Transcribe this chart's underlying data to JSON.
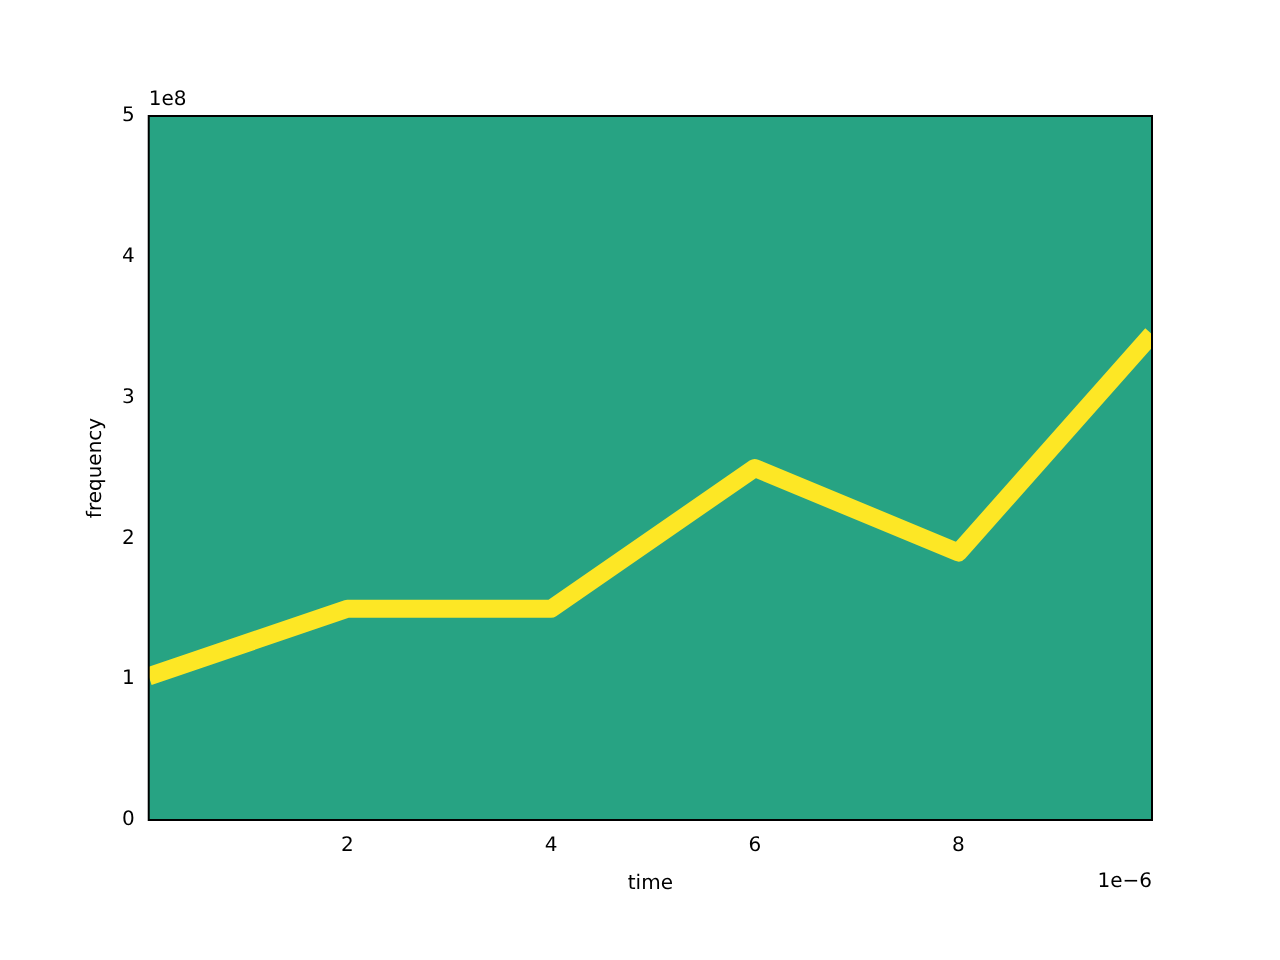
{
  "chart_data": {
    "type": "line",
    "xlabel": "time",
    "ylabel": "frequency",
    "x": [
      0.05,
      2,
      4,
      6,
      8,
      9.9
    ],
    "series": [
      {
        "color": "#fde725",
        "values": [
          1.02,
          1.5,
          1.5,
          2.5,
          1.9,
          3.45
        ]
      }
    ],
    "xlim": [
      0.05,
      9.9
    ],
    "xticks": [
      2,
      4,
      6,
      8
    ],
    "ylim": [
      0,
      5
    ],
    "yticks": [
      0,
      1,
      2,
      3,
      4,
      5
    ],
    "grid": false,
    "legend": false,
    "marker": "none",
    "line_style": "solid",
    "annotations": [
      "1e8",
      "1e−6"
    ]
  }
}
